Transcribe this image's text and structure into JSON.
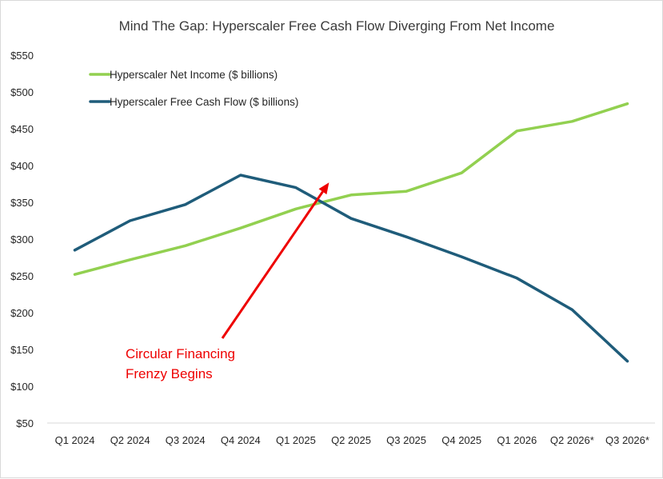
{
  "chart_data": {
    "type": "line",
    "title": "Mind The Gap: Hyperscaler Free Cash Flow Diverging From Net Income",
    "categories": [
      "Q1 2024",
      "Q2 2024",
      "Q3 2024",
      "Q4 2024",
      "Q1 2025",
      "Q2 2025",
      "Q3 2025",
      "Q4 2025",
      "Q1 2026",
      "Q2 2026*",
      "Q3 2026*"
    ],
    "series": [
      {
        "name": "Hyperscaler Net Income ($ billions)",
        "color": "#92d050",
        "values": [
          252,
          272,
          291,
          315,
          341,
          360,
          365,
          390,
          447,
          460,
          484
        ]
      },
      {
        "name": "Hyperscaler Free Cash Flow ($ billions)",
        "color": "#1f5c7a",
        "values": [
          285,
          325,
          347,
          387,
          370,
          328,
          303,
          276,
          247,
          204,
          134
        ]
      }
    ],
    "ylim": [
      50,
      550
    ],
    "yticks": [
      50,
      100,
      150,
      200,
      250,
      300,
      350,
      400,
      450,
      500,
      550
    ],
    "ytick_labels": [
      "$50",
      "$100",
      "$150",
      "$200",
      "$250",
      "$300",
      "$350",
      "$400",
      "$450",
      "$500",
      "$550"
    ],
    "grid": false,
    "legend_placement": "top-left",
    "annotation": {
      "lines": [
        "Circular Financing",
        "Frenzy Begins"
      ],
      "color": "#ee0000",
      "arrow_target": {
        "x": "Q1 2025",
        "y": 327
      }
    }
  }
}
